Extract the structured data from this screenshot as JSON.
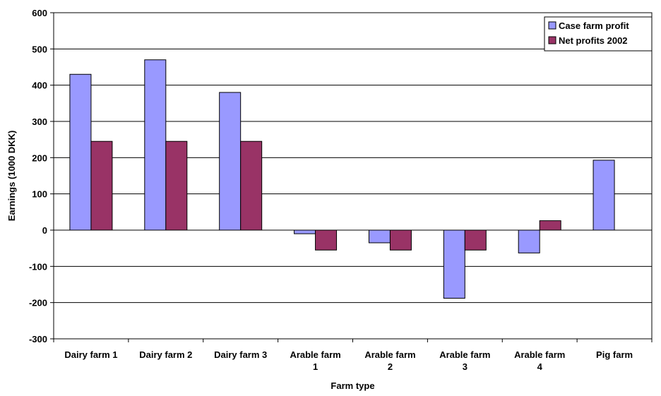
{
  "chart_data": {
    "type": "bar",
    "categories": [
      [
        "Dairy farm 1"
      ],
      [
        "Dairy farm 2"
      ],
      [
        "Dairy farm 3"
      ],
      [
        "Arable farm",
        "1"
      ],
      [
        "Arable farm",
        "2"
      ],
      [
        "Arable farm",
        "3"
      ],
      [
        "Arable farm",
        "4"
      ],
      [
        "Pig farm"
      ]
    ],
    "series": [
      {
        "name": "Case farm profit",
        "color": "#9999ff",
        "values": [
          430,
          470,
          380,
          -10,
          -35,
          -188,
          -63,
          193
        ]
      },
      {
        "name": "Net profits 2002",
        "color": "#993366",
        "values": [
          245,
          245,
          245,
          -55,
          -55,
          -55,
          26,
          null
        ]
      }
    ],
    "xlabel": "Farm type",
    "ylabel": "Earnings (1000 DKK)",
    "ylim": [
      -300,
      600
    ],
    "yticks": [
      -300,
      -200,
      -100,
      0,
      100,
      200,
      300,
      400,
      500,
      600
    ],
    "grid": true,
    "legend": "top-right"
  }
}
